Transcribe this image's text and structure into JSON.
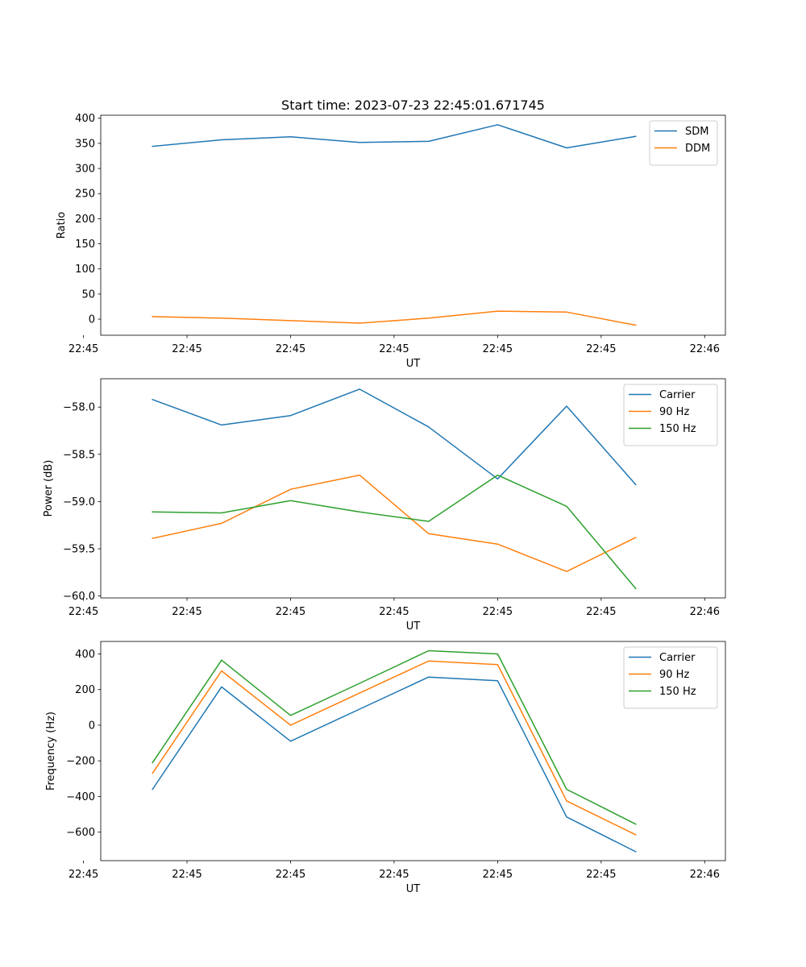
{
  "figure_title": "Start time: 2023-07-23 22:45:01.671745",
  "chart_data": [
    {
      "type": "line",
      "title": "Start time: 2023-07-23 22:45:01.671745",
      "xlabel": "UT",
      "ylabel": "Ratio",
      "x": [
        1,
        2,
        3,
        4,
        5,
        6,
        7,
        8
      ],
      "xlim": [
        0.25,
        9.3
      ],
      "ylim": [
        -32,
        406
      ],
      "yticks": [
        0,
        50,
        100,
        150,
        200,
        250,
        300,
        350,
        400
      ],
      "ytick_labels": [
        "0",
        "50",
        "100",
        "150",
        "200",
        "250",
        "300",
        "350",
        "400"
      ],
      "xticks": [
        0,
        1.5,
        3,
        4.5,
        6,
        7.5,
        9
      ],
      "xtick_labels": [
        "22:45",
        "22:45",
        "22:45",
        "22:45",
        "22:45",
        "22:45",
        "22:46"
      ],
      "legend": "top-right",
      "series": [
        {
          "name": "SDM",
          "color": "#1f77b4",
          "values": [
            344,
            357,
            363,
            352,
            354,
            387,
            341,
            364
          ]
        },
        {
          "name": "DDM",
          "color": "#ff7f0e",
          "values": [
            5,
            2,
            -3,
            -8,
            2,
            16,
            14,
            -12
          ]
        }
      ]
    },
    {
      "type": "line",
      "title": "",
      "xlabel": "UT",
      "ylabel": "Power (dB)",
      "x": [
        1,
        2,
        3,
        4,
        5,
        6,
        7,
        8
      ],
      "xlim": [
        0.25,
        9.3
      ],
      "ylim": [
        -60.02,
        -57.7
      ],
      "yticks": [
        -60.0,
        -59.5,
        -59.0,
        -58.5,
        -58.0
      ],
      "ytick_labels": [
        "−60.0",
        "−59.5",
        "−59.0",
        "−58.5",
        "−58.0"
      ],
      "xticks": [
        0,
        1.5,
        3,
        4.5,
        6,
        7.5,
        9
      ],
      "xtick_labels": [
        "22:45",
        "22:45",
        "22:45",
        "22:45",
        "22:45",
        "22:45",
        "22:46"
      ],
      "legend": "top-right",
      "series": [
        {
          "name": "Carrier",
          "color": "#1f77b4",
          "values": [
            -57.92,
            -58.19,
            -58.09,
            -57.81,
            -58.21,
            -58.76,
            -57.99,
            -58.82
          ]
        },
        {
          "name": "90 Hz",
          "color": "#ff7f0e",
          "values": [
            -59.39,
            -59.23,
            -58.87,
            -58.72,
            -59.34,
            -59.45,
            -59.74,
            -59.38
          ]
        },
        {
          "name": "150 Hz",
          "color": "#2ca02c",
          "values": [
            -59.11,
            -59.12,
            -58.99,
            -59.11,
            -59.21,
            -58.72,
            -59.05,
            -59.92
          ]
        }
      ]
    },
    {
      "type": "line",
      "title": "",
      "xlabel": "UT",
      "ylabel": "Frequency (Hz)",
      "x": [
        1,
        2,
        3,
        4,
        5,
        6,
        7,
        8
      ],
      "xlim": [
        0.25,
        9.3
      ],
      "ylim": [
        -760,
        470
      ],
      "yticks": [
        -600,
        -400,
        -200,
        0,
        200,
        400
      ],
      "ytick_labels": [
        "−600",
        "−400",
        "−200",
        "0",
        "200",
        "400"
      ],
      "xticks": [
        0,
        1.5,
        3,
        4.5,
        6,
        7.5,
        9
      ],
      "xtick_labels": [
        "22:45",
        "22:45",
        "22:45",
        "22:45",
        "22:45",
        "22:45",
        "22:46"
      ],
      "legend": "top-right",
      "series": [
        {
          "name": "Carrier",
          "color": "#1f77b4",
          "values": [
            -360,
            215,
            -90,
            90,
            270,
            250,
            -515,
            -710
          ]
        },
        {
          "name": "90 Hz",
          "color": "#ff7f0e",
          "values": [
            -270,
            305,
            0,
            180,
            360,
            340,
            -425,
            -615
          ]
        },
        {
          "name": "150 Hz",
          "color": "#2ca02c",
          "values": [
            -210,
            365,
            55,
            235,
            418,
            400,
            -360,
            -555
          ]
        }
      ]
    }
  ]
}
